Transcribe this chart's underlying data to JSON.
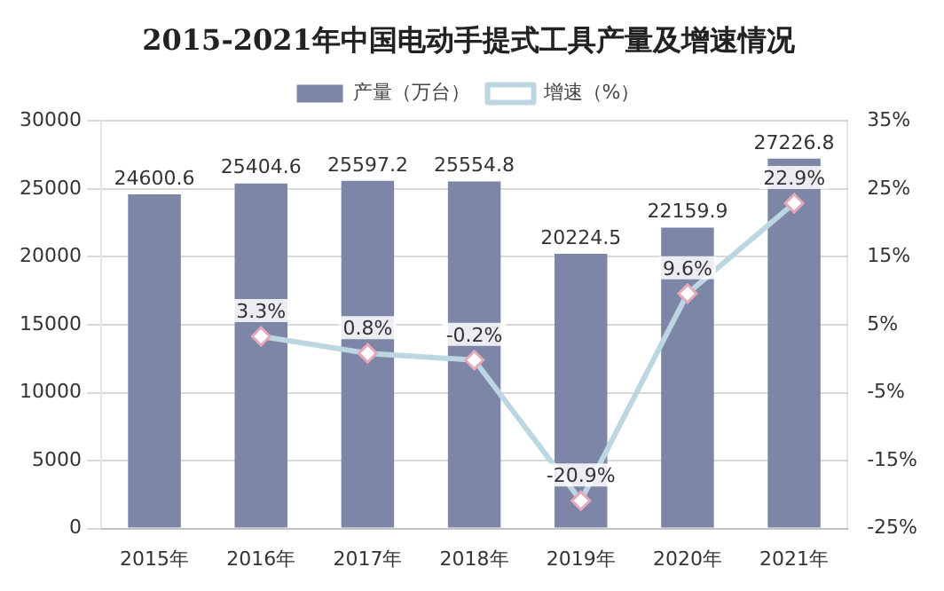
{
  "chart_data": {
    "type": "bar",
    "title": "2015-2021年中国电动手提式工具产量及增速情况",
    "categories": [
      "2015年",
      "2016年",
      "2017年",
      "2018年",
      "2019年",
      "2020年",
      "2021年"
    ],
    "series": [
      {
        "name": "产量（万台）",
        "color": "#7d86a6",
        "values": [
          24600.6,
          25404.6,
          25597.2,
          25554.8,
          20224.5,
          22159.9,
          27226.8
        ],
        "value_labels": [
          "24600.6",
          "25404.6",
          "25597.2",
          "25554.8",
          "20224.5",
          "22159.9",
          "27226.8"
        ]
      },
      {
        "name": "增速（%）",
        "type": "line",
        "axis": "y2",
        "color": "#bcd6e2",
        "marker": "diamond",
        "line_style": "solid",
        "values": [
          null,
          3.3,
          0.8,
          -0.2,
          -20.9,
          9.6,
          22.9
        ],
        "value_labels": [
          null,
          "3.3%",
          "0.8%",
          "-0.2%",
          "-20.9%",
          "9.6%",
          "22.9%"
        ]
      }
    ],
    "ylim": [
      0,
      30000
    ],
    "yticks": [
      0,
      5000,
      10000,
      15000,
      20000,
      25000,
      30000
    ],
    "y2lim": [
      -25,
      35
    ],
    "y2ticks": [
      {
        "value": -25,
        "label": "-25%"
      },
      {
        "value": -15,
        "label": "-15%"
      },
      {
        "value": -5,
        "label": "-5%"
      },
      {
        "value": 5,
        "label": "5%"
      },
      {
        "value": 15,
        "label": "15%"
      },
      {
        "value": 25,
        "label": "25%"
      },
      {
        "value": 35,
        "label": "35%"
      }
    ],
    "grid": "y",
    "legend": "top"
  }
}
